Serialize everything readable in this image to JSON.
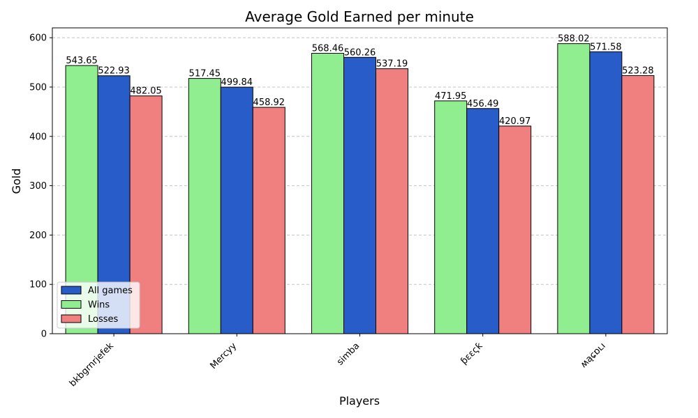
{
  "chart_data": {
    "type": "bar",
    "title": "Average Gold Earned per minute",
    "xlabel": "Players",
    "ylabel": "Gold",
    "ylim": [
      0,
      620
    ],
    "yticks": [
      0,
      100,
      200,
      300,
      400,
      500,
      600
    ],
    "grid": "y-dashed",
    "legend_position": "lower-left",
    "categories": [
      "bkbgrnrjefek",
      "Mercyy",
      "simba",
      "ƥɛɛςƙ",
      "ʍąɕɒʟı"
    ],
    "series": [
      {
        "name": "Wins",
        "color": "#90ee90",
        "values": [
          543.65,
          517.45,
          568.46,
          471.95,
          588.02
        ]
      },
      {
        "name": "All games",
        "color": "#285cc8",
        "values": [
          522.93,
          499.84,
          560.26,
          456.49,
          571.58
        ]
      },
      {
        "name": "Losses",
        "color": "#f08080",
        "values": [
          482.05,
          458.92,
          537.19,
          420.97,
          523.28
        ]
      }
    ],
    "value_labels": [
      [
        "543.65",
        "522.93",
        "482.05"
      ],
      [
        "517.45",
        "499.84",
        "458.92"
      ],
      [
        "568.46",
        "560.26",
        "537.19"
      ],
      [
        "471.95",
        "456.49",
        "420.97"
      ],
      [
        "588.02",
        "571.58",
        "523.28"
      ]
    ],
    "legend": [
      "All games",
      "Wins",
      "Losses"
    ]
  }
}
